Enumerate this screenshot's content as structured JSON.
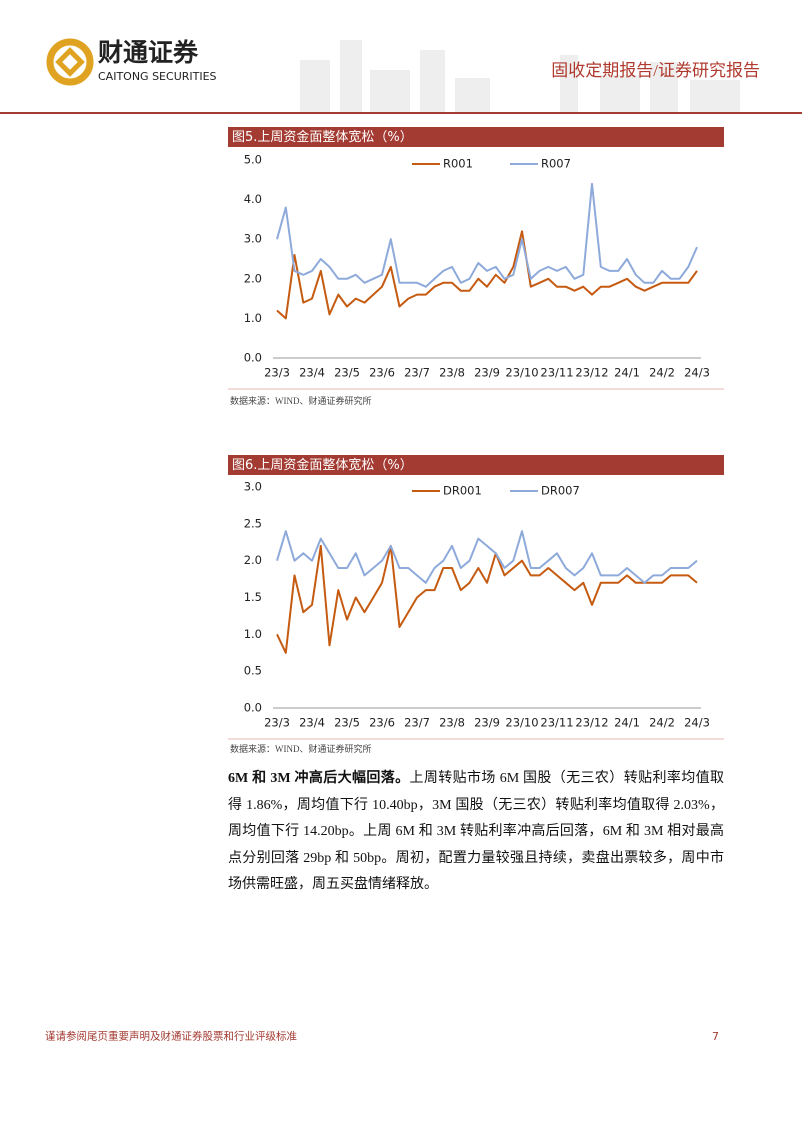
{
  "header": {
    "company_cn": "财通证券",
    "company_en": "CAITONG SECURITIES",
    "report_type": "固收定期报告/证券研究报告"
  },
  "chart_data": [
    {
      "type": "line",
      "title": "图5.上周资金面整体宽松（%）",
      "source": "数据来源：WIND、财通证券研究所",
      "categories": [
        "23/3",
        null,
        null,
        null,
        "23/4",
        null,
        null,
        null,
        "23/5",
        null,
        null,
        null,
        "23/6",
        null,
        null,
        null,
        "23/7",
        null,
        null,
        null,
        "23/8",
        null,
        null,
        null,
        "23/9",
        null,
        null,
        null,
        "23/10",
        null,
        null,
        null,
        "23/11",
        null,
        null,
        null,
        "23/12",
        null,
        null,
        null,
        "24/1",
        null,
        null,
        null,
        "24/2",
        null,
        null,
        null,
        "24/3"
      ],
      "series": [
        {
          "name": "R001",
          "color": "#c55a11",
          "values": [
            1.2,
            1.0,
            2.6,
            1.4,
            1.5,
            2.2,
            1.1,
            1.6,
            1.3,
            1.5,
            1.4,
            1.6,
            1.8,
            2.3,
            1.3,
            1.5,
            1.6,
            1.6,
            1.8,
            1.9,
            1.9,
            1.7,
            1.7,
            2.0,
            1.8,
            2.1,
            1.9,
            2.3,
            3.2,
            1.8,
            1.9,
            2.0,
            1.8,
            1.8,
            1.7,
            1.8,
            1.6,
            1.8,
            1.8,
            1.9,
            2.0,
            1.8,
            1.7,
            1.8,
            1.9,
            1.9,
            1.9,
            1.9,
            2.2
          ]
        },
        {
          "name": "R007",
          "color": "#8eaadb",
          "values": [
            3.0,
            3.8,
            2.2,
            2.1,
            2.2,
            2.5,
            2.3,
            2.0,
            2.0,
            2.1,
            1.9,
            2.0,
            2.1,
            3.0,
            1.9,
            1.9,
            1.9,
            1.8,
            2.0,
            2.2,
            2.3,
            1.9,
            2.0,
            2.4,
            2.2,
            2.3,
            2.0,
            2.1,
            3.0,
            2.0,
            2.2,
            2.3,
            2.2,
            2.3,
            2.0,
            2.1,
            4.4,
            2.3,
            2.2,
            2.2,
            2.5,
            2.1,
            1.9,
            1.9,
            2.2,
            2.0,
            2.0,
            2.3,
            2.8
          ]
        }
      ],
      "ylim": [
        0,
        5
      ],
      "yticks": [
        {
          "value": 0,
          "label": "0.0"
        },
        {
          "value": 1,
          "label": "1.0"
        },
        {
          "value": 2,
          "label": "2.0"
        },
        {
          "value": 3,
          "label": "3.0"
        },
        {
          "value": 4,
          "label": "4.0"
        },
        {
          "value": 5,
          "label": "5.0"
        }
      ],
      "grid": false,
      "legend": "top"
    },
    {
      "type": "line",
      "title": "图6.上周资金面整体宽松（%）",
      "source": "数据来源：WIND、财通证券研究所",
      "categories": [
        "23/3",
        null,
        null,
        null,
        "23/4",
        null,
        null,
        null,
        "23/5",
        null,
        null,
        null,
        "23/6",
        null,
        null,
        null,
        "23/7",
        null,
        null,
        null,
        "23/8",
        null,
        null,
        null,
        "23/9",
        null,
        null,
        null,
        "23/10",
        null,
        null,
        null,
        "23/11",
        null,
        null,
        null,
        "23/12",
        null,
        null,
        null,
        "24/1",
        null,
        null,
        null,
        "24/2",
        null,
        null,
        null,
        "24/3"
      ],
      "series": [
        {
          "name": "DR001",
          "color": "#c55a11",
          "values": [
            1.0,
            0.75,
            1.8,
            1.3,
            1.4,
            2.2,
            0.85,
            1.6,
            1.2,
            1.5,
            1.3,
            1.5,
            1.7,
            2.2,
            1.1,
            1.3,
            1.5,
            1.6,
            1.6,
            1.9,
            1.9,
            1.6,
            1.7,
            1.9,
            1.7,
            2.1,
            1.8,
            1.9,
            2.0,
            1.8,
            1.8,
            1.9,
            1.8,
            1.7,
            1.6,
            1.7,
            1.4,
            1.7,
            1.7,
            1.7,
            1.8,
            1.7,
            1.7,
            1.7,
            1.7,
            1.8,
            1.8,
            1.8,
            1.7
          ]
        },
        {
          "name": "DR007",
          "color": "#8eaadb",
          "values": [
            2.0,
            2.4,
            2.0,
            2.1,
            2.0,
            2.3,
            2.1,
            1.9,
            1.9,
            2.1,
            1.8,
            1.9,
            2.0,
            2.2,
            1.9,
            1.9,
            1.8,
            1.7,
            1.9,
            2.0,
            2.2,
            1.9,
            2.0,
            2.3,
            2.2,
            2.1,
            1.9,
            2.0,
            2.4,
            1.9,
            1.9,
            2.0,
            2.1,
            1.9,
            1.8,
            1.9,
            2.1,
            1.8,
            1.8,
            1.8,
            1.9,
            1.8,
            1.7,
            1.8,
            1.8,
            1.9,
            1.9,
            1.9,
            2.0
          ]
        }
      ],
      "ylim": [
        0,
        3
      ],
      "yticks": [
        {
          "value": 0,
          "label": "0.0"
        },
        {
          "value": 0.5,
          "label": "0.5"
        },
        {
          "value": 1,
          "label": "1.0"
        },
        {
          "value": 1.5,
          "label": "1.5"
        },
        {
          "value": 2,
          "label": "2.0"
        },
        {
          "value": 2.5,
          "label": "2.5"
        },
        {
          "value": 3,
          "label": "3.0"
        }
      ],
      "grid": false,
      "legend": "top"
    }
  ],
  "body": {
    "lead": "6M 和 3M 冲高后大幅回落。",
    "text": "上周转贴市场 6M 国股（无三农）转贴利率均值取得 1.86%，周均值下行 10.40bp，3M 国股（无三农）转贴利率均值取得 2.03%，周均值下行 14.20bp。上周 6M 和 3M 转贴利率冲高后回落，6M 和 3M 相对最高点分别回落 29bp 和 50bp。周初，配置力量较强且持续，卖盘出票较多，周中市场供需旺盛，周五买盘情绪释放。"
  },
  "footer": {
    "disclaimer": "谨请参阅尾页重要声明及财通证券股票和行业评级标准",
    "page": "7"
  }
}
